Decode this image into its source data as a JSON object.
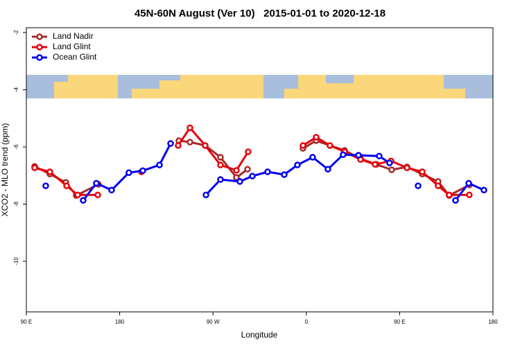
{
  "chart_data": {
    "type": "line",
    "title": "45N-60N August (Ver 10)   2015-01-01 to 2020-12-18",
    "x_label": "Longitude",
    "y_label": "XCO2 - MLO trend (ppm)",
    "xlim": [
      90,
      540
    ],
    "ylim": [
      -11.77,
      -1.83
    ],
    "xticks": [
      {
        "value": 90,
        "label": "90 E"
      },
      180,
      {
        "value": 270,
        "label": "90 W"
      },
      {
        "value": 360,
        "label": "0"
      },
      {
        "value": 450,
        "label": "90 E"
      },
      {
        "value": 540,
        "label": "180"
      }
    ],
    "yticks": [
      -2,
      -4,
      -6,
      -8,
      -10
    ],
    "legend": "top-left",
    "series": [
      {
        "name": "Land Nadir",
        "color": "#a52a2a",
        "x": [
          98.0,
          112.7,
          128.1,
          138.1,
          159.5,
          null,
          237.1,
          247.8,
          262.5,
          277.2,
          292.6,
          303.3,
          null,
          356.8,
          369.5,
          382.8,
          396.9,
          412.3,
          427.6,
          442.3,
          457.1,
          471.8,
          487.1,
          497.8,
          517.2
        ],
        "values": [
          -6.68,
          -6.95,
          -7.24,
          -7.7,
          -7.31,
          null,
          -5.78,
          -5.83,
          -5.95,
          -6.36,
          -7.07,
          -6.78,
          null,
          -6.05,
          -5.78,
          -5.95,
          -6.12,
          -6.41,
          -6.61,
          -6.8,
          -6.7,
          -6.95,
          -7.21,
          -7.7,
          -7.33
        ]
      },
      {
        "name": "Land Glint",
        "color": "#e8000b",
        "x": [
          98.0,
          112.7,
          128.8,
          139.5,
          158.9,
          null,
          201.0,
          null,
          236.4,
          247.8,
          262.5,
          277.2,
          292.6,
          303.9,
          null,
          356.8,
          369.5,
          382.8,
          396.9,
          412.3,
          426.3,
          441.7,
          457.1,
          471.8,
          487.1,
          497.8,
          517.2
        ],
        "values": [
          -6.73,
          -6.87,
          -7.36,
          -7.68,
          -7.68,
          null,
          -6.87,
          null,
          -5.95,
          -5.33,
          -5.95,
          -6.63,
          -6.82,
          -6.17,
          null,
          -5.95,
          -5.66,
          -5.95,
          -6.17,
          -6.44,
          -6.61,
          -6.49,
          -6.73,
          -6.87,
          -7.36,
          -7.68,
          -7.68
        ]
      },
      {
        "name": "Ocean Glint",
        "color": "#0000ee",
        "x": [
          108.7,
          null,
          144.8,
          157.5,
          172.2,
          188.9,
          202.3,
          218.4,
          229.1,
          null,
          263.2,
          277.2,
          295.9,
          308.0,
          322.7,
          338.7,
          351.4,
          366.1,
          380.8,
          395.5,
          410.3,
          430.3,
          440.3,
          null,
          467.8,
          null,
          503.9,
          516.6,
          531.3
        ],
        "values": [
          -7.36,
          null,
          -7.87,
          -7.27,
          -7.51,
          -6.9,
          -6.83,
          -6.63,
          -5.88,
          null,
          -7.68,
          -7.14,
          -7.21,
          -7.02,
          -6.87,
          -6.97,
          -6.63,
          -6.36,
          -6.78,
          -6.27,
          -6.29,
          -6.32,
          -6.56,
          null,
          -7.36,
          null,
          -7.87,
          -7.27,
          -7.51
        ]
      }
    ]
  }
}
